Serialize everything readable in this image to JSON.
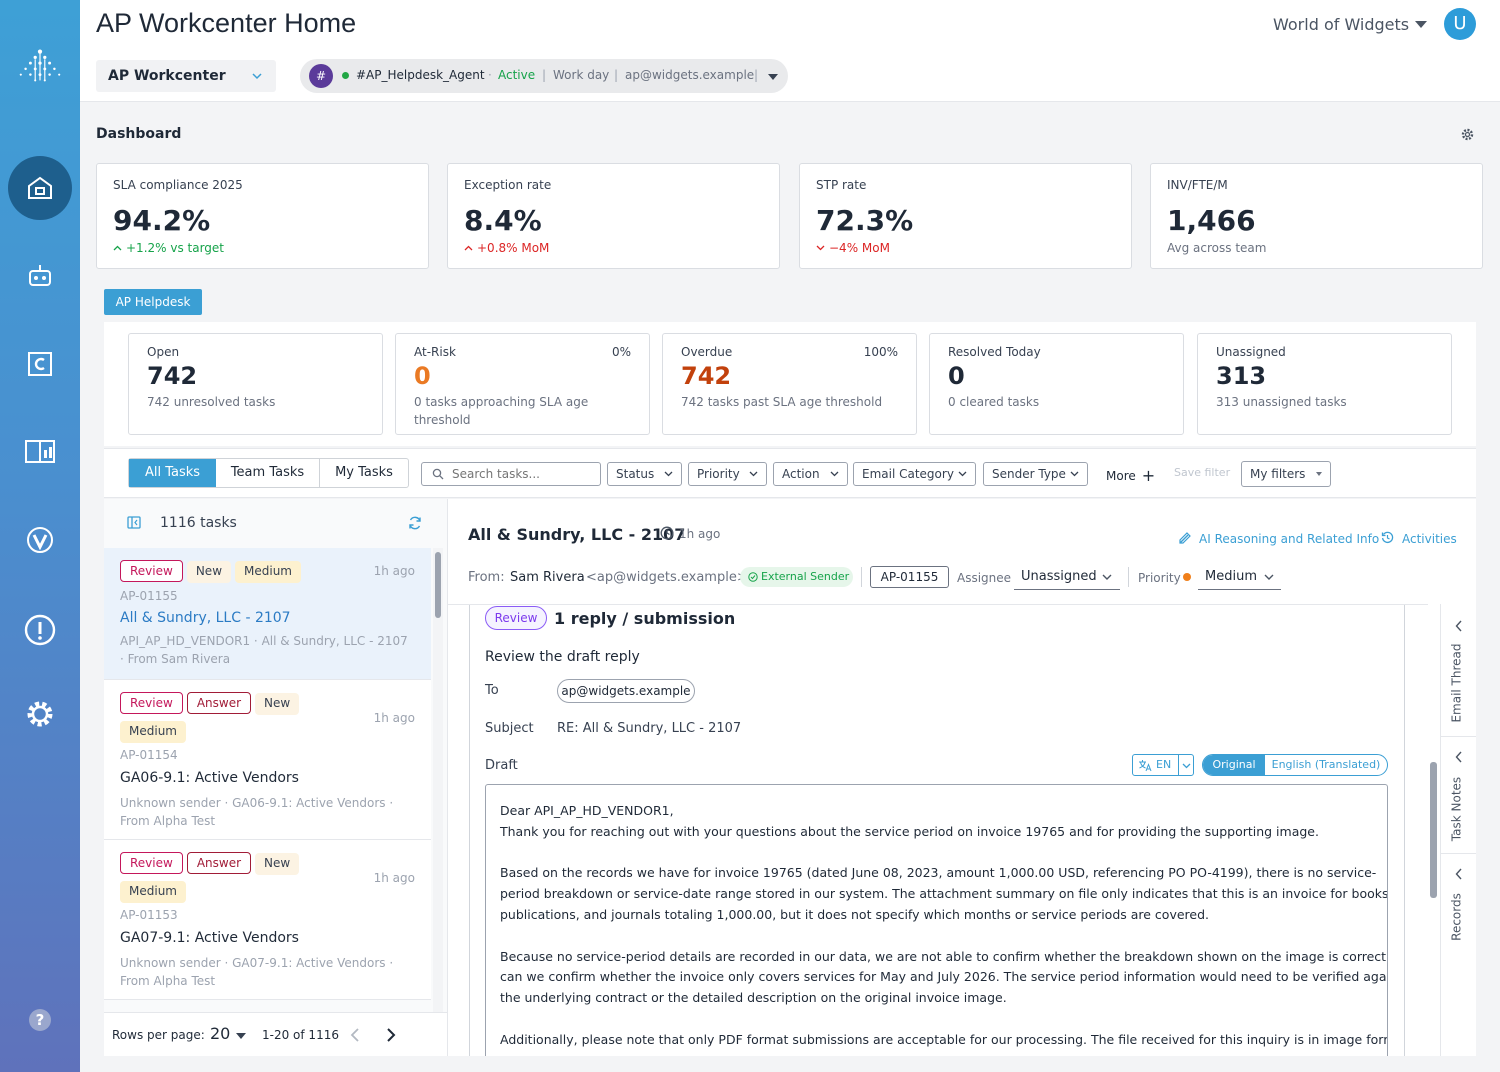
{
  "header": {
    "title": "AP Workcenter Home",
    "org": "World of Widgets",
    "avatar": "U"
  },
  "toolbar": {
    "workspace": "AP Workcenter",
    "agent": {
      "badge": "#",
      "name": "#AP_Helpdesk_Agent",
      "status": "Active",
      "schedule": "Work day",
      "email": "ap@widgets.example"
    }
  },
  "dashboard": {
    "title": "Dashboard",
    "kpis": [
      {
        "label": "SLA compliance 2025",
        "value": "94.2%",
        "trend": "+1.2% vs target",
        "dir": "up",
        "color": "#16a34a"
      },
      {
        "label": "Exception rate",
        "value": "8.4%",
        "trend": "+0.8% MoM",
        "dir": "up",
        "color": "#dc2626"
      },
      {
        "label": "STP rate",
        "value": "72.3%",
        "trend": "−4% MoM",
        "dir": "down",
        "color": "#dc2626"
      },
      {
        "label": "INV/FTE/M",
        "value": "1,466",
        "trend": "Avg across team",
        "dir": "none",
        "color": "#6b7280"
      }
    ]
  },
  "helpdesk": {
    "tab": "AP Helpdesk",
    "stats": [
      {
        "label": "Open",
        "pct": "",
        "value": "742",
        "desc": "742 unresolved tasks",
        "color": "#1f2937"
      },
      {
        "label": "At-Risk",
        "pct": "0%",
        "value": "0",
        "desc": "0 tasks approaching SLA age threshold",
        "color": "#ea7a24"
      },
      {
        "label": "Overdue",
        "pct": "100%",
        "value": "742",
        "desc": "742 tasks past SLA age threshold",
        "color": "#c2410c"
      },
      {
        "label": "Resolved Today",
        "pct": "",
        "value": "0",
        "desc": "0 cleared tasks",
        "color": "#1f2937"
      },
      {
        "label": "Unassigned",
        "pct": "",
        "value": "313",
        "desc": "313 unassigned tasks",
        "color": "#1f2937"
      }
    ]
  },
  "filters": {
    "tabs": [
      "All Tasks",
      "Team Tasks",
      "My Tasks"
    ],
    "search_placeholder": "Search tasks...",
    "dropdowns": [
      "Status",
      "Priority",
      "Action",
      "Email Category",
      "Sender Type"
    ],
    "more": "More",
    "save_filter": "Save filter",
    "my_filters": "My filters"
  },
  "task_list": {
    "count": "1116 tasks",
    "tasks": [
      {
        "tags": [
          "Review",
          "New",
          "Medium"
        ],
        "time": "1h ago",
        "id": "AP-01155",
        "title": "All & Sundry, LLC - 2107",
        "meta": "API_AP_HD_VENDOR1 · All & Sundry, LLC - 2107 · From Sam Rivera"
      },
      {
        "tags": [
          "Review",
          "Answer",
          "New",
          "Medium"
        ],
        "time": "1h ago",
        "id": "AP-01154",
        "title": "GA06-9.1: Active Vendors",
        "meta": "Unknown sender · GA06-9.1: Active Vendors · From Alpha Test"
      },
      {
        "tags": [
          "Review",
          "Answer",
          "New",
          "Medium"
        ],
        "time": "1h ago",
        "id": "AP-01153",
        "title": "GA07-9.1: Active Vendors",
        "meta": "Unknown sender · GA07-9.1: Active Vendors · From Alpha Test"
      }
    ],
    "rows_label": "Rows per page:",
    "rows_value": "20",
    "range": "1-20 of 1116"
  },
  "detail": {
    "title": "All & Sundry, LLC - 2107",
    "time": "1h ago",
    "ai_link": "AI Reasoning and Related Info",
    "activities": "Activities",
    "from_label": "From:",
    "from_name": "Sam Rivera",
    "from_email": "<ap@widgets.example>",
    "sender_badge": "External Sender",
    "task_id": "AP-01155",
    "assignee_label": "Assignee",
    "assignee_value": "Unassigned",
    "priority_label": "Priority",
    "priority_value": "Medium",
    "review_tag": "Review",
    "reply_title": "1 reply / submission",
    "review_heading": "Review the draft reply",
    "to_label": "To",
    "to_value": "ap@widgets.example",
    "subject_label": "Subject",
    "subject_value": "RE: All & Sundry, LLC - 2107",
    "draft_label": "Draft",
    "lang": "EN",
    "toggle_original": "Original",
    "toggle_translated": "English (Translated)",
    "draft_lines": [
      "Dear API_AP_HD_VENDOR1,",
      "Thank you for reaching out with your questions about the service period on invoice 19765 and for providing the supporting image.",
      "",
      "Based on the records we have for invoice 19765 (dated June 08, 2023, amount 1,000.00 USD, referencing PO PO-4199), there is no service-",
      "period breakdown or service-date range stored in our system. The attachment summary on file only indicates that this is an invoice for books,",
      "publications, and journals totaling 1,000.00, but it does not specify which months or service periods are covered.",
      "",
      "Because no service-period details are recorded in our data, we are not able to confirm whether the breakdown shown on the image is correct, nor",
      "can we confirm whether the invoice only covers services for May and July 2026. The service period information would need to be verified against",
      "the underlying contract or the detailed description on the original invoice image.",
      "",
      "Additionally, please note that only PDF format submissions are acceptable for our processing. The file received for this inquiry is in image format"
    ]
  },
  "side_tabs": [
    "Email Thread",
    "Task Notes",
    "Records"
  ],
  "colors": {
    "accent": "#3b9fd4",
    "brand_dark": "#1e5f8d",
    "review": "#c4175b"
  }
}
